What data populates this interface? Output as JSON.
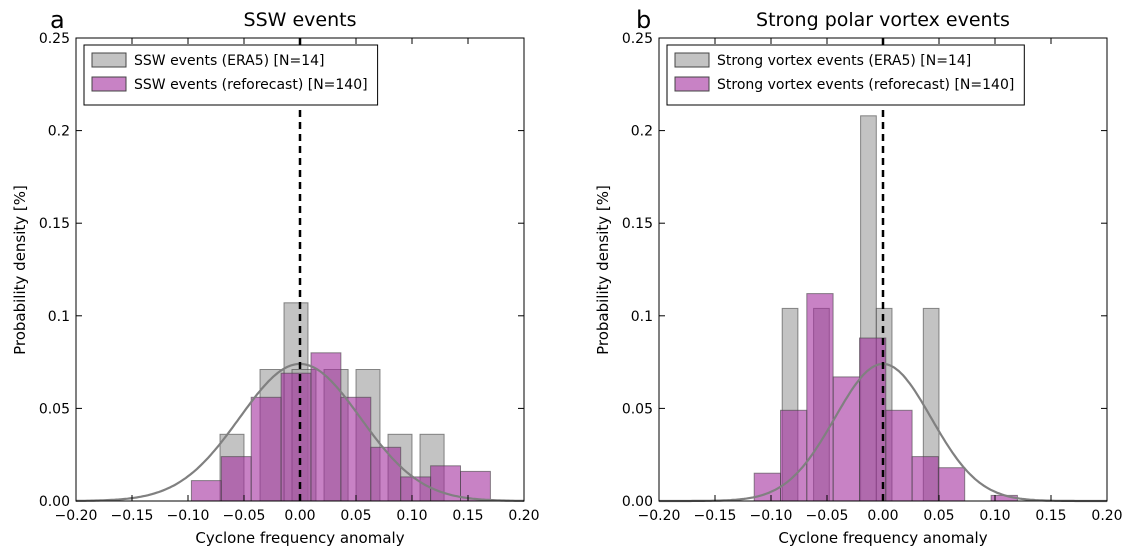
{
  "chart_data": [
    {
      "panel": "a",
      "type": "bar",
      "title": "SSW events",
      "xlabel": "Cyclone frequency anomaly",
      "ylabel": "Probability density [%]",
      "xlim": [
        -0.2,
        0.2
      ],
      "ylim": [
        0,
        0.25
      ],
      "xticks": [
        "−0.20",
        "−0.15",
        "−0.10",
        "−0.05",
        "0.00",
        "0.05",
        "0.10",
        "0.15",
        "0.20"
      ],
      "yticks": [
        "0.00",
        "0.05",
        "0.1",
        "0.15",
        "0.2",
        "0.25"
      ],
      "legend_position": "top-left",
      "grid": false,
      "vline_x": 0,
      "series": [
        {
          "name": "SSW events (ERA5) [N=14]",
          "color": "#a9a9a9",
          "bins": [
            [
              -0.0714,
              -0.05,
              0.036
            ],
            [
              -0.0143,
              0.0071,
              0.107
            ],
            [
              -0.0357,
              -0.0143,
              0.071
            ],
            [
              -0.0071,
              0.0143,
              0.071
            ],
            [
              0.0214,
              0.0429,
              0.071
            ],
            [
              0.05,
              0.0714,
              0.071
            ],
            [
              0.0786,
              0.1,
              0.036
            ],
            [
              0.1071,
              0.1286,
              0.036
            ]
          ]
        },
        {
          "name": "SSW events (reforecast) [N=140]",
          "color": "#a42e9e",
          "bins": [
            [
              -0.097,
              -0.0703,
              0.011
            ],
            [
              -0.0703,
              -0.0436,
              0.024
            ],
            [
              -0.0436,
              -0.0169,
              0.056
            ],
            [
              -0.0169,
              0.0098,
              0.069
            ],
            [
              0.0098,
              0.0365,
              0.08
            ],
            [
              0.0365,
              0.0632,
              0.056
            ],
            [
              0.0632,
              0.0899,
              0.029
            ],
            [
              0.0899,
              0.1166,
              0.013
            ],
            [
              0.1166,
              0.1433,
              0.019
            ],
            [
              0.1433,
              0.17,
              0.016
            ]
          ]
        }
      ],
      "fit": {
        "color": "#808080",
        "mean": 0.0,
        "peak": 0.074,
        "sigma": 0.054
      }
    },
    {
      "panel": "b",
      "type": "bar",
      "title": "Strong polar vortex events",
      "xlabel": "Cyclone frequency anomaly",
      "ylabel": "Probability density [%]",
      "xlim": [
        -0.2,
        0.2
      ],
      "ylim": [
        0,
        0.25
      ],
      "xticks": [
        "−0.20",
        "−0.15",
        "−0.10",
        "−0.05",
        "0.00",
        "0.05",
        "0.10",
        "0.15",
        "0.20"
      ],
      "yticks": [
        "0.00",
        "0.05",
        "0.1",
        "0.15",
        "0.2",
        "0.25"
      ],
      "legend_position": "top-left",
      "grid": false,
      "vline_x": 0,
      "series": [
        {
          "name": "Strong vortex events (ERA5) [N=14]",
          "color": "#a9a9a9",
          "bins": [
            [
              -0.09,
              -0.076,
              0.104
            ],
            [
              -0.062,
              -0.048,
              0.104
            ],
            [
              -0.02,
              -0.006,
              0.208
            ],
            [
              -0.006,
              0.008,
              0.104
            ],
            [
              0.036,
              0.05,
              0.104
            ]
          ]
        },
        {
          "name": "Strong vortex events (reforecast) [N=140]",
          "color": "#a42e9e",
          "bins": [
            [
              -0.115,
              -0.0915,
              0.015
            ],
            [
              -0.0915,
              -0.068,
              0.049
            ],
            [
              -0.068,
              -0.0445,
              0.112
            ],
            [
              -0.0445,
              -0.021,
              0.067
            ],
            [
              -0.021,
              0.0025,
              0.088
            ],
            [
              0.0025,
              0.026,
              0.049
            ],
            [
              0.026,
              0.0495,
              0.024
            ],
            [
              0.0495,
              0.073,
              0.018
            ],
            [
              0.0965,
              0.12,
              0.003
            ]
          ]
        }
      ],
      "fit": {
        "color": "#808080",
        "mean": 0.0,
        "peak": 0.074,
        "sigma": 0.043
      }
    }
  ]
}
